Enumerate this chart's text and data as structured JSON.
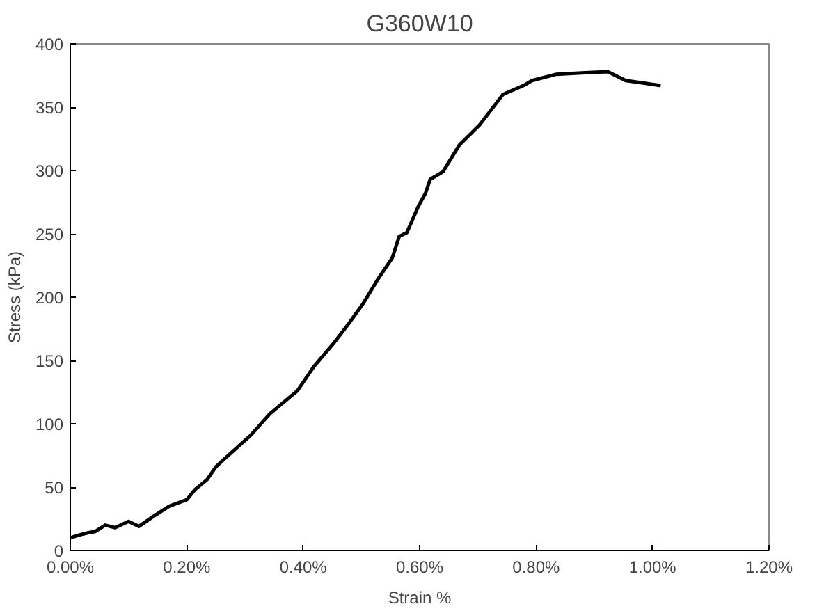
{
  "chart_data": {
    "type": "line",
    "title": "G360W10",
    "xlabel": "Strain %",
    "ylabel": "Stress (kPa)",
    "x": [
      0,
      0.014,
      0.031,
      0.043,
      0.06,
      0.077,
      0.1,
      0.118,
      0.143,
      0.17,
      0.2,
      0.214,
      0.235,
      0.25,
      0.264,
      0.31,
      0.343,
      0.39,
      0.418,
      0.453,
      0.478,
      0.503,
      0.528,
      0.553,
      0.565,
      0.578,
      0.598,
      0.61,
      0.618,
      0.64,
      0.668,
      0.703,
      0.743,
      0.778,
      0.793,
      0.835,
      0.878,
      0.923,
      0.954,
      0.986,
      1.014
    ],
    "series": [
      {
        "color": "#000000",
        "values": [
          10,
          12,
          14,
          15,
          20,
          18,
          23,
          19,
          27,
          35,
          40,
          48,
          56,
          66,
          72,
          91,
          108,
          126,
          145,
          164,
          179,
          195,
          214,
          231,
          248,
          251,
          272,
          282,
          293,
          299,
          320,
          336,
          360,
          367,
          371,
          376,
          377,
          378,
          371,
          369,
          367
        ]
      }
    ],
    "xlim": [
      0,
      1.2
    ],
    "ylim": [
      0,
      400
    ],
    "xticks": [
      {
        "value": 0,
        "label": "0.00%"
      },
      {
        "value": 0.2,
        "label": "0.20%"
      },
      {
        "value": 0.4,
        "label": "0.40%"
      },
      {
        "value": 0.6,
        "label": "0.60%"
      },
      {
        "value": 0.8,
        "label": "0.80%"
      },
      {
        "value": 1.0,
        "label": "1.00%"
      },
      {
        "value": 1.2,
        "label": "1.20%"
      }
    ],
    "yticks": [
      0,
      50,
      100,
      150,
      200,
      250,
      300,
      350,
      400
    ],
    "line_style": "solid"
  }
}
